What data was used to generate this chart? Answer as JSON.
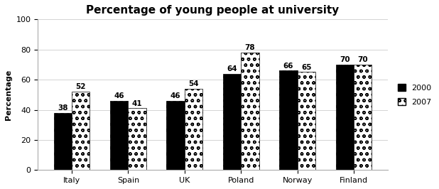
{
  "title": "Percentage of young people at university",
  "ylabel": "Percentage",
  "categories": [
    "Italy",
    "Spain",
    "UK",
    "Poland",
    "Norway",
    "Finland"
  ],
  "values_2000": [
    38,
    46,
    46,
    64,
    66,
    70
  ],
  "values_2007": [
    52,
    41,
    54,
    78,
    65,
    70
  ],
  "ylim": [
    0,
    100
  ],
  "yticks": [
    0,
    20,
    40,
    60,
    80,
    100
  ],
  "legend_labels": [
    "2000",
    "2007"
  ],
  "bar_width": 0.32,
  "title_fontsize": 11,
  "label_fontsize": 8,
  "tick_fontsize": 8,
  "annotation_fontsize": 7.5,
  "background_color": "#ffffff"
}
